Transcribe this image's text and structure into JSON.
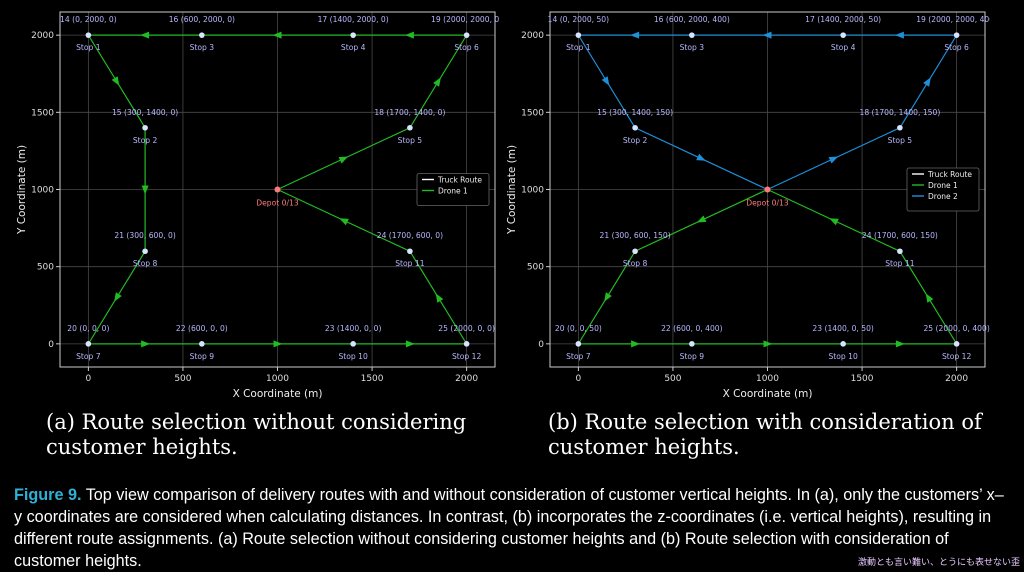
{
  "chart_data": [
    {
      "type": "line",
      "panel": "a",
      "xlabel": "X Coordinate (m)",
      "ylabel": "Y Coordinate (m)",
      "xlim": [
        -150,
        2150
      ],
      "ylim": [
        -150,
        2150
      ],
      "xticks": [
        0,
        500,
        1000,
        1500,
        2000
      ],
      "yticks": [
        0,
        500,
        1000,
        1500,
        2000
      ],
      "grid": true,
      "legend_position": "right",
      "depot": {
        "x": 1000,
        "y": 1000,
        "label": "Depot 0/13"
      },
      "points": [
        {
          "x": 0,
          "y": 2000,
          "coord": "14 (0, 2000, 0)",
          "stop": "Stop 1"
        },
        {
          "x": 300,
          "y": 1400,
          "coord": "15 (300, 1400, 0)",
          "stop": "Stop 2"
        },
        {
          "x": 600,
          "y": 2000,
          "coord": "16 (600, 2000, 0)",
          "stop": "Stop 3"
        },
        {
          "x": 1400,
          "y": 2000,
          "coord": "17 (1400, 2000, 0)",
          "stop": "Stop 4"
        },
        {
          "x": 1700,
          "y": 1400,
          "coord": "18 (1700, 1400, 0)",
          "stop": "Stop 5"
        },
        {
          "x": 2000,
          "y": 2000,
          "coord": "19 (2000, 2000, 0)",
          "stop": "Stop 6"
        },
        {
          "x": 0,
          "y": 0,
          "coord": "20 (0, 0, 0)",
          "stop": "Stop 7"
        },
        {
          "x": 300,
          "y": 600,
          "coord": "21 (300, 600, 0)",
          "stop": "Stop 8"
        },
        {
          "x": 600,
          "y": 0,
          "coord": "22 (600, 0, 0)",
          "stop": "Stop 9"
        },
        {
          "x": 1400,
          "y": 0,
          "coord": "23 (1400, 0, 0)",
          "stop": "Stop 10"
        },
        {
          "x": 1700,
          "y": 600,
          "coord": "24 (1700, 600, 0)",
          "stop": "Stop 11"
        },
        {
          "x": 2000,
          "y": 0,
          "coord": "25 (2000, 0, 0)",
          "stop": "Stop 12"
        }
      ],
      "series": [
        {
          "name": "Truck Route",
          "color": "#ffffff",
          "routes": []
        },
        {
          "name": "Drone 1",
          "color": "#22bb22",
          "routes": [
            [
              [
                1000,
                1000
              ],
              [
                1700,
                1400
              ],
              [
                2000,
                2000
              ],
              [
                1400,
                2000
              ],
              [
                600,
                2000
              ],
              [
                0,
                2000
              ],
              [
                300,
                1400
              ],
              [
                300,
                600
              ],
              [
                0,
                0
              ],
              [
                600,
                0
              ],
              [
                1400,
                0
              ],
              [
                2000,
                0
              ],
              [
                1700,
                600
              ],
              [
                1000,
                1000
              ]
            ]
          ]
        }
      ]
    },
    {
      "type": "line",
      "panel": "b",
      "xlabel": "X Coordinate (m)",
      "ylabel": "Y Coordinate (m)",
      "xlim": [
        -150,
        2150
      ],
      "ylim": [
        -150,
        2150
      ],
      "xticks": [
        0,
        500,
        1000,
        1500,
        2000
      ],
      "yticks": [
        0,
        500,
        1000,
        1500,
        2000
      ],
      "grid": true,
      "legend_position": "right",
      "depot": {
        "x": 1000,
        "y": 1000,
        "label": "Depot 0/13"
      },
      "points": [
        {
          "x": 0,
          "y": 2000,
          "coord": "14 (0, 2000, 50)",
          "stop": "Stop 1"
        },
        {
          "x": 300,
          "y": 1400,
          "coord": "15 (300, 1400, 150)",
          "stop": "Stop 2"
        },
        {
          "x": 600,
          "y": 2000,
          "coord": "16 (600, 2000, 400)",
          "stop": "Stop 3"
        },
        {
          "x": 1400,
          "y": 2000,
          "coord": "17 (1400, 2000, 50)",
          "stop": "Stop 4"
        },
        {
          "x": 1700,
          "y": 1400,
          "coord": "18 (1700, 1400, 150)",
          "stop": "Stop 5"
        },
        {
          "x": 2000,
          "y": 2000,
          "coord": "19 (2000, 2000, 400)",
          "stop": "Stop 6"
        },
        {
          "x": 0,
          "y": 0,
          "coord": "20 (0, 0, 50)",
          "stop": "Stop 7"
        },
        {
          "x": 300,
          "y": 600,
          "coord": "21 (300, 600, 150)",
          "stop": "Stop 8"
        },
        {
          "x": 600,
          "y": 0,
          "coord": "22 (600, 0, 400)",
          "stop": "Stop 9"
        },
        {
          "x": 1400,
          "y": 0,
          "coord": "23 (1400, 0, 50)",
          "stop": "Stop 10"
        },
        {
          "x": 1700,
          "y": 600,
          "coord": "24 (1700, 600, 150)",
          "stop": "Stop 11"
        },
        {
          "x": 2000,
          "y": 0,
          "coord": "25 (2000, 0, 400)",
          "stop": "Stop 12"
        }
      ],
      "series": [
        {
          "name": "Truck Route",
          "color": "#ffffff",
          "routes": []
        },
        {
          "name": "Drone 1",
          "color": "#22bb22",
          "routes": [
            [
              [
                1000,
                1000
              ],
              [
                300,
                600
              ],
              [
                0,
                0
              ],
              [
                600,
                0
              ],
              [
                1400,
                0
              ],
              [
                2000,
                0
              ],
              [
                1700,
                600
              ],
              [
                1000,
                1000
              ]
            ]
          ]
        },
        {
          "name": "Drone 2",
          "color": "#1f8fd8",
          "routes": [
            [
              [
                1000,
                1000
              ],
              [
                1700,
                1400
              ],
              [
                2000,
                2000
              ],
              [
                1400,
                2000
              ],
              [
                600,
                2000
              ],
              [
                0,
                2000
              ],
              [
                300,
                1400
              ],
              [
                1000,
                1000
              ]
            ]
          ]
        }
      ]
    }
  ],
  "subcaptions": {
    "a": "(a) Route selection without considering customer heights.",
    "b": "(b) Route selection with consideration of customer heights."
  },
  "caption": {
    "label": "Figure 9.",
    "text": "Top view comparison of delivery routes with and without consideration of customer vertical heights. In (a), only the customers’ x–y coordinates are considered when calculating distances. In contrast, (b) incorporates the z-coordinates (i.e. vertical heights), resulting in different route assignments. (a) Route selection without considering customer heights and (b) Route selection with consideration of customer heights."
  },
  "overlay_text": "激動とも言い難い、とうにも表せない歪",
  "colors": {
    "label_blue": "#b8b8ff",
    "depot": "#ff7b7b",
    "customer": "#d8e4ff",
    "caption_label": "#2fb0d6"
  }
}
